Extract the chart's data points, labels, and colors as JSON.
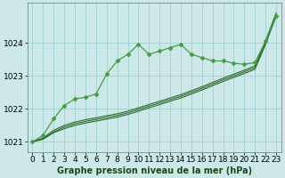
{
  "title": "Graphe pression niveau de la mer (hPa)",
  "hours": [
    0,
    1,
    2,
    3,
    4,
    5,
    6,
    7,
    8,
    9,
    10,
    11,
    12,
    13,
    14,
    15,
    16,
    17,
    18,
    19,
    20,
    21,
    22,
    23
  ],
  "ylim": [
    1020.7,
    1025.2
  ],
  "yticks": [
    1021,
    1022,
    1023,
    1024
  ],
  "background_color": "#cce8e8",
  "grid_color": "#99cccc",
  "line_dark": "#2d6b2d",
  "line_bright": "#4a9a4a",
  "line_wavy": [
    1021.0,
    1021.2,
    1021.7,
    1022.1,
    1022.3,
    1022.35,
    1022.45,
    1023.05,
    1023.45,
    1023.65,
    1023.95,
    1023.65,
    1023.75,
    1023.85,
    1023.95,
    1023.65,
    1023.55,
    1023.45,
    1023.45,
    1023.38,
    1023.35,
    1023.4,
    1024.05,
    1024.8
  ],
  "line_straight1": [
    1021.0,
    1021.1,
    1021.3,
    1021.45,
    1021.55,
    1021.62,
    1021.68,
    1021.74,
    1021.8,
    1021.88,
    1021.98,
    1022.08,
    1022.18,
    1022.28,
    1022.38,
    1022.5,
    1022.62,
    1022.75,
    1022.88,
    1023.0,
    1023.12,
    1023.25,
    1024.0,
    1024.85
  ],
  "line_straight2": [
    1021.0,
    1021.12,
    1021.35,
    1021.5,
    1021.6,
    1021.67,
    1021.73,
    1021.79,
    1021.85,
    1021.93,
    1022.03,
    1022.13,
    1022.23,
    1022.33,
    1022.43,
    1022.55,
    1022.67,
    1022.8,
    1022.93,
    1023.05,
    1023.17,
    1023.3,
    1024.05,
    1024.9
  ],
  "line_straight3": [
    1021.0,
    1021.08,
    1021.28,
    1021.4,
    1021.5,
    1021.57,
    1021.63,
    1021.69,
    1021.75,
    1021.83,
    1021.93,
    1022.03,
    1022.13,
    1022.23,
    1022.33,
    1022.45,
    1022.57,
    1022.7,
    1022.83,
    1022.95,
    1023.07,
    1023.2,
    1023.95,
    1024.8
  ],
  "tick_fontsize": 6.5,
  "label_fontsize": 7.0,
  "figwidth": 3.2,
  "figheight": 2.0,
  "dpi": 100
}
